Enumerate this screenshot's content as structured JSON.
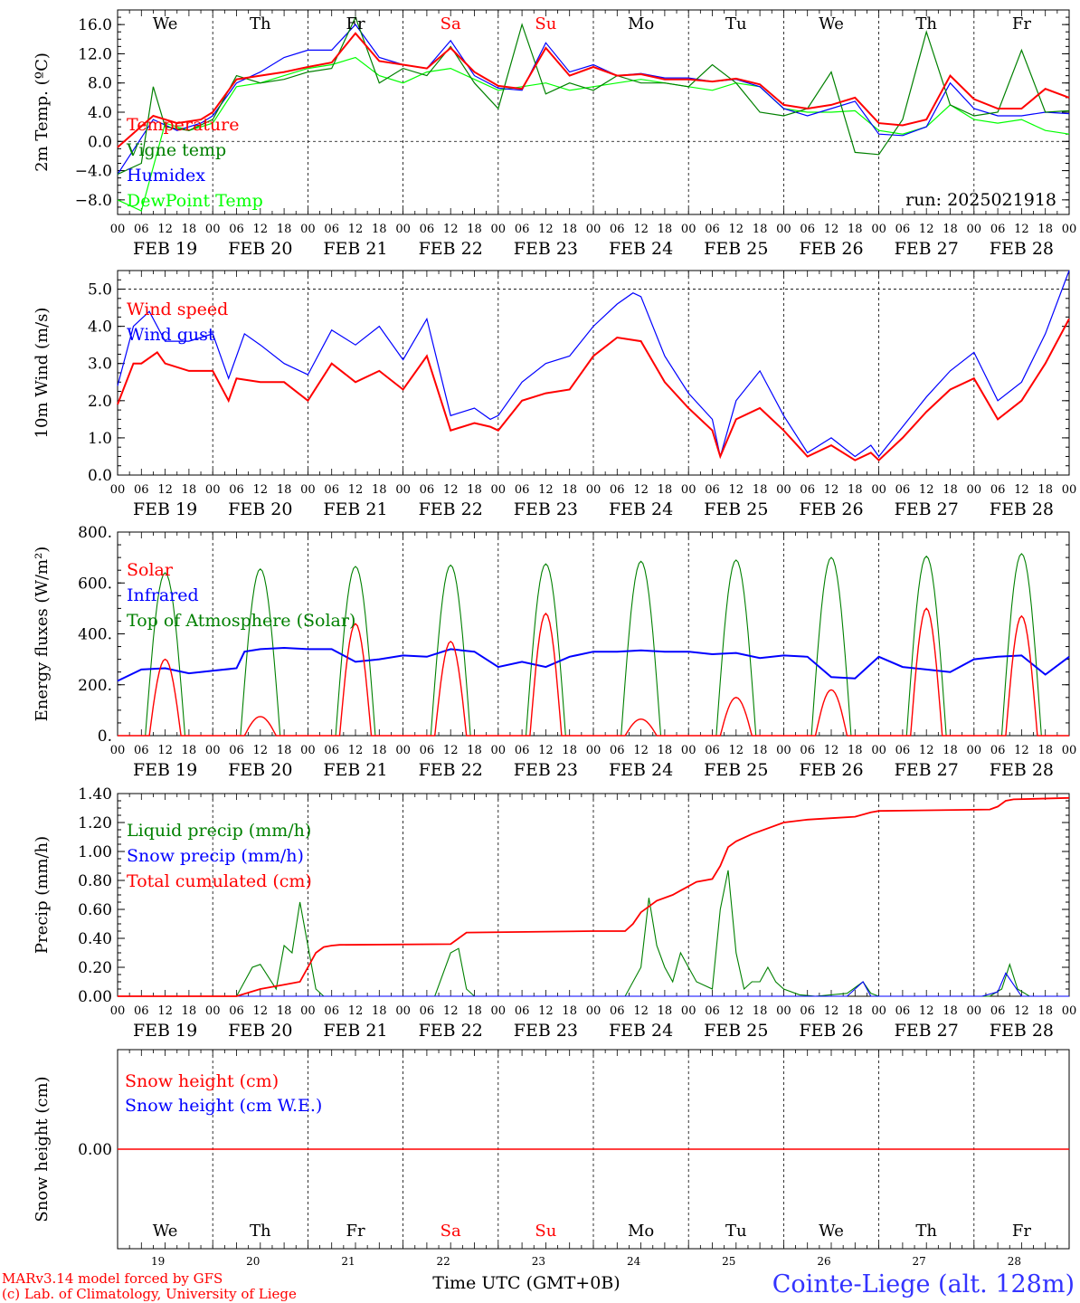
{
  "chart_data": [
    {
      "type": "line",
      "ylabel": "2m Temp. (ºC)",
      "ylim": [
        -10,
        18
      ],
      "yticks": [
        -8,
        -4,
        0,
        4,
        8,
        12,
        16
      ],
      "ytick_labels": [
        "−8.0",
        "−4.0",
        "0.0",
        "4.0",
        "8.0",
        "12.0",
        "16.0"
      ],
      "zero_line": true,
      "weekday_labels": [
        "We",
        "Th",
        "Fr",
        "Sa",
        "Su",
        "Mo",
        "Tu",
        "We",
        "Th",
        "Fr"
      ],
      "annotation": "run: 2025021918",
      "series": [
        {
          "name": "Temperature",
          "color": "#ff0000",
          "x": [
            0,
            9,
            15,
            21,
            24,
            30,
            36,
            42,
            48,
            54,
            60,
            66,
            72,
            78,
            84,
            90,
            96,
            102,
            108,
            114,
            120,
            126,
            132,
            138,
            144,
            150,
            156,
            162,
            168,
            174,
            180,
            186,
            192,
            198,
            204,
            210,
            216,
            222,
            228,
            234,
            240
          ],
          "y": [
            -0.8,
            3.5,
            2.5,
            3.0,
            4.0,
            8.5,
            9.0,
            9.5,
            10.2,
            10.8,
            14.8,
            11.0,
            10.5,
            10.0,
            12.8,
            9.5,
            7.6,
            7.2,
            12.8,
            9.0,
            10.2,
            9.0,
            9.2,
            8.5,
            8.5,
            8.2,
            8.6,
            7.8,
            5.0,
            4.5,
            5.0,
            6.0,
            2.5,
            2.2,
            3.0,
            9.0,
            5.8,
            4.5,
            4.5,
            7.2,
            6.0
          ]
        },
        {
          "name": "Vigne temp",
          "color": "#008000",
          "x": [
            0,
            6,
            9,
            12,
            18,
            24,
            30,
            36,
            42,
            48,
            54,
            60,
            66,
            72,
            78,
            84,
            90,
            96,
            102,
            108,
            114,
            120,
            126,
            132,
            138,
            144,
            150,
            156,
            162,
            168,
            174,
            180,
            186,
            192,
            198,
            204,
            210,
            216,
            222,
            228,
            234,
            240
          ],
          "y": [
            -4.5,
            -3.0,
            7.5,
            2.0,
            1.5,
            3.0,
            9.0,
            8.0,
            8.5,
            9.5,
            10.0,
            17.0,
            8.0,
            10.0,
            9.0,
            13.0,
            8.0,
            4.5,
            16.0,
            6.5,
            8.0,
            7.0,
            9.0,
            8.0,
            8.0,
            7.5,
            10.5,
            8.0,
            4.0,
            3.5,
            4.5,
            9.5,
            -1.5,
            -1.8,
            3.0,
            15.0,
            5.0,
            3.5,
            4.0,
            12.5,
            4.0,
            4.2
          ]
        },
        {
          "name": "Humidex",
          "color": "#0000ff",
          "x": [
            0,
            9,
            15,
            21,
            24,
            30,
            36,
            42,
            48,
            54,
            60,
            66,
            72,
            78,
            84,
            90,
            96,
            102,
            108,
            114,
            120,
            126,
            132,
            138,
            144,
            150,
            156,
            162,
            168,
            174,
            180,
            186,
            192,
            198,
            204,
            210,
            216,
            222,
            228,
            234,
            240
          ],
          "y": [
            -4.5,
            3.0,
            1.5,
            2.5,
            3.5,
            8.0,
            9.5,
            11.5,
            12.5,
            12.5,
            16.0,
            11.5,
            10.5,
            10.0,
            13.8,
            9.0,
            7.3,
            7.0,
            13.5,
            9.5,
            10.5,
            9.0,
            9.3,
            8.7,
            8.7,
            8.2,
            8.5,
            7.5,
            4.5,
            3.5,
            4.5,
            5.5,
            1.0,
            0.8,
            2.0,
            8.0,
            4.5,
            3.5,
            3.5,
            4.0,
            3.8
          ]
        },
        {
          "name": "DewPoint Temp",
          "color": "#00ff00",
          "x": [
            0,
            6,
            12,
            18,
            24,
            30,
            36,
            42,
            48,
            54,
            60,
            66,
            72,
            78,
            84,
            90,
            96,
            102,
            108,
            114,
            120,
            126,
            132,
            138,
            144,
            150,
            156,
            162,
            168,
            174,
            180,
            186,
            192,
            198,
            204,
            210,
            216,
            222,
            228,
            234,
            240
          ],
          "y": [
            -8.0,
            -9.5,
            2.5,
            1.5,
            2.5,
            7.5,
            8.0,
            9.0,
            10.0,
            10.5,
            11.5,
            9.0,
            8.0,
            9.5,
            10.0,
            8.5,
            7.0,
            7.5,
            8.0,
            7.0,
            7.5,
            8.0,
            8.5,
            8.0,
            7.5,
            7.0,
            8.0,
            7.5,
            4.5,
            4.0,
            4.0,
            4.2,
            1.5,
            1.0,
            2.0,
            5.0,
            3.0,
            2.5,
            3.0,
            1.5,
            1.0
          ]
        }
      ]
    },
    {
      "type": "line",
      "ylabel": "10m Wind (m/s)",
      "ylim": [
        0,
        5.5
      ],
      "yticks": [
        0,
        1,
        2,
        3,
        4,
        5
      ],
      "ytick_labels": [
        "0.0",
        "1.0",
        "2.0",
        "3.0",
        "4.0",
        "5.0"
      ],
      "ref_line": 5.0,
      "series": [
        {
          "name": "Wind speed",
          "color": "#ff0000",
          "x": [
            0,
            4,
            6,
            10,
            12,
            18,
            24,
            28,
            30,
            36,
            42,
            48,
            54,
            60,
            66,
            72,
            78,
            84,
            90,
            94,
            96,
            102,
            108,
            114,
            120,
            126,
            132,
            138,
            144,
            150,
            152,
            156,
            162,
            168,
            174,
            180,
            186,
            190,
            192,
            198,
            204,
            210,
            216,
            222,
            228,
            234,
            240
          ],
          "y": [
            1.9,
            3.0,
            3.0,
            3.3,
            3.0,
            2.8,
            2.8,
            2.0,
            2.6,
            2.5,
            2.5,
            2.0,
            3.0,
            2.5,
            2.8,
            2.3,
            3.2,
            1.2,
            1.4,
            1.3,
            1.2,
            2.0,
            2.2,
            2.3,
            3.2,
            3.7,
            3.6,
            2.5,
            1.8,
            1.2,
            0.5,
            1.5,
            1.8,
            1.2,
            0.5,
            0.8,
            0.4,
            0.6,
            0.4,
            1.0,
            1.7,
            2.3,
            2.6,
            1.5,
            2.0,
            3.0,
            4.2
          ]
        },
        {
          "name": "Wind gust",
          "color": "#0000ff",
          "x": [
            0,
            4,
            8,
            12,
            18,
            24,
            28,
            32,
            36,
            42,
            48,
            54,
            60,
            66,
            72,
            78,
            84,
            90,
            94,
            96,
            102,
            108,
            114,
            120,
            126,
            130,
            132,
            138,
            144,
            150,
            152,
            156,
            162,
            168,
            174,
            180,
            186,
            190,
            192,
            198,
            204,
            210,
            216,
            222,
            228,
            234,
            240
          ],
          "y": [
            2.4,
            4.0,
            4.4,
            3.6,
            3.6,
            3.8,
            2.6,
            3.8,
            3.5,
            3.0,
            2.7,
            3.9,
            3.5,
            4.0,
            3.1,
            4.2,
            1.6,
            1.8,
            1.5,
            1.6,
            2.5,
            3.0,
            3.2,
            4.0,
            4.6,
            4.9,
            4.8,
            3.2,
            2.2,
            1.5,
            0.5,
            2.0,
            2.8,
            1.6,
            0.6,
            1.0,
            0.5,
            0.8,
            0.5,
            1.3,
            2.1,
            2.8,
            3.3,
            2.0,
            2.5,
            3.8,
            5.5
          ]
        }
      ]
    },
    {
      "type": "line",
      "ylabel": "Energy fluxes (W/m²)",
      "ylim": [
        0,
        800
      ],
      "yticks": [
        0,
        200,
        400,
        600,
        800
      ],
      "ytick_labels": [
        "0.",
        "200.",
        "400.",
        "600.",
        "800."
      ],
      "daily_peaks": {
        "Solar": [
          300,
          75,
          440,
          370,
          480,
          65,
          150,
          180,
          500,
          470
        ],
        "Top of Atmosphere (Solar)": [
          640,
          655,
          665,
          670,
          675,
          685,
          690,
          700,
          705,
          715
        ]
      },
      "series": [
        {
          "name": "Solar",
          "color": "#ff0000"
        },
        {
          "name": "Infrared",
          "color": "#0000ff",
          "x": [
            0,
            6,
            12,
            18,
            24,
            30,
            32,
            36,
            42,
            48,
            54,
            60,
            66,
            72,
            78,
            84,
            90,
            96,
            102,
            108,
            114,
            120,
            126,
            132,
            138,
            144,
            150,
            156,
            162,
            168,
            174,
            180,
            186,
            192,
            198,
            204,
            210,
            216,
            222,
            228,
            234,
            240
          ],
          "y": [
            215,
            260,
            265,
            245,
            255,
            265,
            330,
            340,
            345,
            340,
            340,
            290,
            300,
            315,
            310,
            340,
            330,
            270,
            290,
            270,
            310,
            330,
            330,
            335,
            330,
            330,
            320,
            325,
            305,
            315,
            310,
            230,
            225,
            310,
            270,
            260,
            250,
            300,
            310,
            315,
            240,
            310
          ]
        },
        {
          "name": "Top of Atmosphere (Solar)",
          "color": "#008000"
        }
      ]
    },
    {
      "type": "line",
      "ylabel": "Precip (mm/h)",
      "ylim": [
        0,
        1.4
      ],
      "yticks": [
        0,
        0.2,
        0.4,
        0.6,
        0.8,
        1.0,
        1.2,
        1.4
      ],
      "ytick_labels": [
        "0.00",
        "0.20",
        "0.40",
        "0.60",
        "0.80",
        "1.00",
        "1.20",
        "1.40"
      ],
      "series": [
        {
          "name": "Liquid precip (mm/h)",
          "color": "#008000",
          "x": [
            0,
            30,
            34,
            36,
            40,
            42,
            44,
            46,
            48,
            50,
            52,
            54,
            56,
            80,
            84,
            86,
            88,
            90,
            128,
            132,
            134,
            136,
            138,
            140,
            142,
            144,
            146,
            150,
            152,
            154,
            156,
            158,
            160,
            162,
            164,
            166,
            168,
            172,
            176,
            184,
            188,
            190,
            192,
            220,
            223,
            225,
            227,
            230,
            240
          ],
          "y": [
            0,
            0,
            0.2,
            0.22,
            0.05,
            0.35,
            0.3,
            0.65,
            0.35,
            0.05,
            0,
            0,
            0,
            0,
            0.3,
            0.33,
            0.05,
            0,
            0,
            0.2,
            0.68,
            0.35,
            0.2,
            0.1,
            0.3,
            0.2,
            0.1,
            0.05,
            0.6,
            0.87,
            0.3,
            0.05,
            0.1,
            0.1,
            0.2,
            0.1,
            0.05,
            0.01,
            0,
            0.02,
            0.1,
            0.02,
            0,
            0,
            0.05,
            0.22,
            0.05,
            0,
            0
          ]
        },
        {
          "name": "Snow precip (mm/h)",
          "color": "#0000ff",
          "x": [
            0,
            184,
            186,
            188,
            190,
            218,
            222,
            224,
            226,
            228,
            240
          ],
          "y": [
            0,
            0,
            0.05,
            0.1,
            0,
            0,
            0.03,
            0.16,
            0.08,
            0,
            0
          ]
        },
        {
          "name": "Total cumulated (cm)",
          "color": "#ff0000",
          "x": [
            0,
            30,
            36,
            42,
            46,
            48,
            50,
            52,
            54,
            56,
            84,
            86,
            88,
            120,
            128,
            130,
            132,
            134,
            136,
            140,
            142,
            144,
            146,
            150,
            152,
            154,
            156,
            160,
            168,
            174,
            180,
            186,
            190,
            192,
            220,
            222,
            224,
            226,
            240
          ],
          "y": [
            0,
            0,
            0.05,
            0.08,
            0.1,
            0.2,
            0.3,
            0.34,
            0.35,
            0.355,
            0.36,
            0.4,
            0.44,
            0.45,
            0.45,
            0.5,
            0.58,
            0.62,
            0.66,
            0.7,
            0.73,
            0.76,
            0.79,
            0.81,
            0.9,
            1.03,
            1.07,
            1.12,
            1.2,
            1.22,
            1.23,
            1.24,
            1.27,
            1.28,
            1.29,
            1.31,
            1.35,
            1.36,
            1.37
          ]
        }
      ]
    },
    {
      "type": "line",
      "ylabel": "Snow height (cm)",
      "ytick_labels": [
        "0.00"
      ],
      "weekday_labels": [
        "We",
        "Th",
        "Fr",
        "Sa",
        "Su",
        "Mo",
        "Tu",
        "We",
        "Th",
        "Fr"
      ],
      "day_numbers": [
        "19",
        "20",
        "21",
        "22",
        "23",
        "24",
        "25",
        "26",
        "27",
        "28"
      ],
      "xlabel": "Time UTC (GMT+0B)",
      "series": [
        {
          "name": "Snow height (cm)",
          "color": "#ff0000",
          "x": [
            0,
            240
          ],
          "y": [
            0,
            0
          ]
        },
        {
          "name": "Snow height (cm W.E.)",
          "color": "#0000ff"
        }
      ]
    }
  ],
  "x_axis": {
    "hour_labels": [
      "00",
      "06",
      "12",
      "18"
    ],
    "end_label": "00",
    "date_labels": [
      "FEB 19",
      "FEB 20",
      "FEB 21",
      "FEB 22",
      "FEB 23",
      "FEB 24",
      "FEB 25",
      "FEB 26",
      "FEB 27",
      "FEB 28"
    ]
  },
  "footer": {
    "line1": "MARv3.14 model forced by GFS",
    "line2": "(c) Lab. of Climatology, University of Liege",
    "station": "Cointe-Liege (alt. 128m)"
  },
  "colors": {
    "weekend": "#ff0000",
    "weekday": "#000000"
  },
  "weekend_days": [
    3,
    4
  ]
}
